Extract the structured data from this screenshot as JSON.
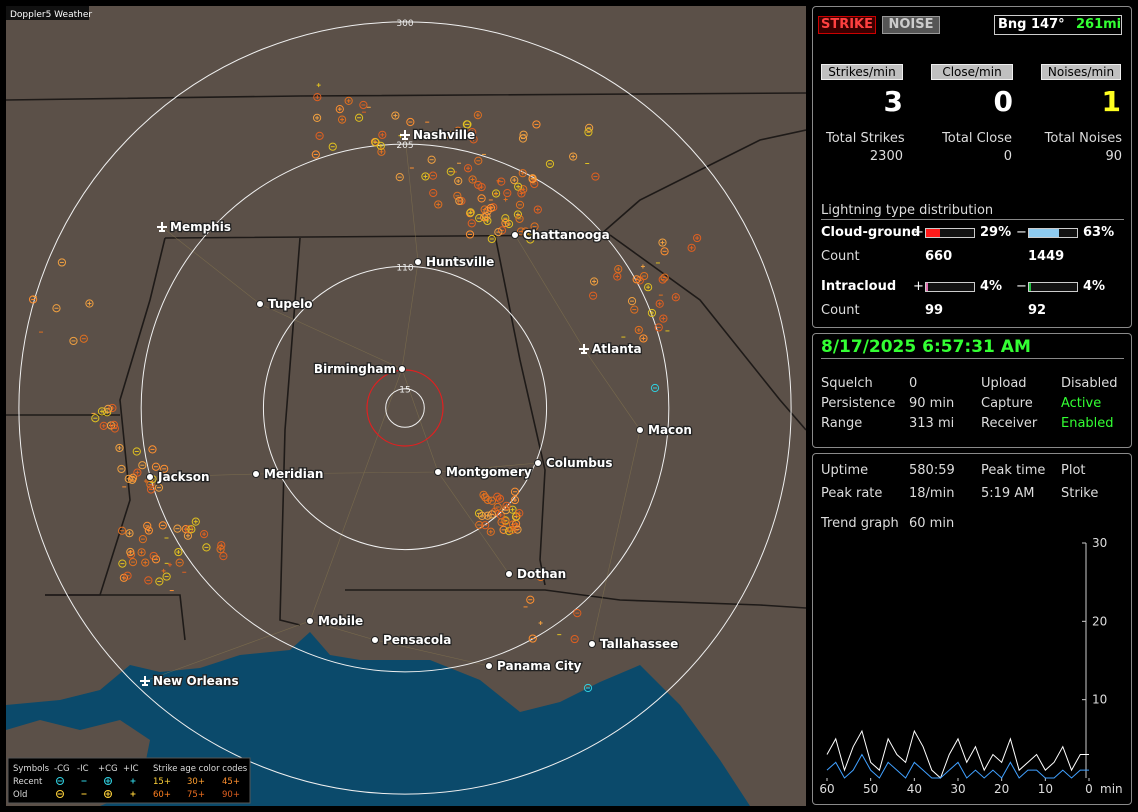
{
  "app_title": "Doppler5 Weather",
  "map": {
    "range_rings": [
      15,
      110,
      205,
      300
    ],
    "cities": [
      {
        "name": "Nashville",
        "icon": "plane"
      },
      {
        "name": "Memphis",
        "icon": "plane"
      },
      {
        "name": "Chattanooga",
        "icon": "dot"
      },
      {
        "name": "Huntsville",
        "icon": "dot"
      },
      {
        "name": "Tupelo",
        "icon": "dot"
      },
      {
        "name": "Atlanta",
        "icon": "plane"
      },
      {
        "name": "Birmingham",
        "icon": "dot"
      },
      {
        "name": "Macon",
        "icon": "dot"
      },
      {
        "name": "Jackson",
        "icon": "dot"
      },
      {
        "name": "Meridian",
        "icon": "dot"
      },
      {
        "name": "Montgomery",
        "icon": "dot"
      },
      {
        "name": "Columbus",
        "icon": "dot"
      },
      {
        "name": "Dothan",
        "icon": "dot"
      },
      {
        "name": "Mobile",
        "icon": "dot"
      },
      {
        "name": "Pensacola",
        "icon": "dot"
      },
      {
        "name": "Tallahassee",
        "icon": "dot"
      },
      {
        "name": "Panama City",
        "icon": "dot"
      },
      {
        "name": "New Orleans",
        "icon": "plane"
      }
    ],
    "legend": {
      "symbols_label": "Symbols",
      "types": [
        "-CG",
        "-IC",
        "+CG",
        "+IC"
      ],
      "age_label": "Strike age color codes",
      "recent_label": "Recent",
      "old_label": "Old",
      "recent_ages": [
        "15+",
        "30+",
        "45+"
      ],
      "old_ages": [
        "60+",
        "75+",
        "90+"
      ]
    }
  },
  "status": {
    "strike_button": "STRIKE",
    "noise_button": "NOISE",
    "bearing": "Bng 147°",
    "distance": "261mi",
    "rate_labels": [
      "Strikes/min",
      "Close/min",
      "Noises/min"
    ],
    "rates": [
      3,
      0,
      1
    ],
    "total_labels": [
      "Total Strikes",
      "Total Close",
      "Total Noises"
    ],
    "totals": [
      2300,
      0,
      90
    ],
    "distribution": {
      "title": "Lightning type distribution",
      "count_label": "Count",
      "rows": [
        {
          "name": "Cloud-ground",
          "positive": {
            "sign": "+",
            "pct": {
              "value": 29,
              "label": "29%"
            },
            "count": 660,
            "color": "#ff1a1a"
          },
          "negative": {
            "sign": "−",
            "pct": {
              "value": 63,
              "label": "63%"
            },
            "count": 1449,
            "color": "#8ecbf0"
          }
        },
        {
          "name": "Intracloud",
          "positive": {
            "sign": "+",
            "pct": {
              "value": 4,
              "label": "4%"
            },
            "count": 99,
            "color": "#e070b0"
          },
          "negative": {
            "sign": "−",
            "pct": {
              "value": 4,
              "label": "4%"
            },
            "count": 92,
            "color": "#20c040"
          }
        }
      ]
    }
  },
  "receiver": {
    "datetime": "8/17/2025 6:57:31 AM",
    "rows": [
      [
        "Squelch",
        0,
        "Upload",
        "Disabled"
      ],
      [
        "Persistence",
        "90 min",
        "Capture",
        "Active"
      ],
      [
        "Range",
        "313 mi",
        "Receiver",
        "Enabled"
      ]
    ]
  },
  "stats": {
    "rows": [
      [
        "Uptime",
        "580:59",
        "Peak time",
        "Plot"
      ],
      [
        "Peak rate",
        "18/min",
        "5:19 AM",
        "Strike"
      ]
    ],
    "trend_label": "Trend graph",
    "trend_window": "60 min",
    "trend_graph": {
      "ylim": [
        0,
        30
      ],
      "yticks": [
        10,
        20,
        30
      ],
      "xlim": [
        60,
        0
      ],
      "xticks": [
        60,
        50,
        40,
        30,
        20,
        10,
        0
      ],
      "x_unit": "min",
      "x": [
        60,
        58,
        56,
        54,
        52,
        50,
        48,
        46,
        44,
        42,
        40,
        38,
        36,
        34,
        32,
        30,
        28,
        26,
        24,
        22,
        20,
        18,
        16,
        14,
        12,
        10,
        8,
        6,
        4,
        2,
        0
      ],
      "series": [
        {
          "color": "#ffffff",
          "values": [
            3,
            5,
            1,
            4,
            6,
            2,
            1,
            5,
            3,
            2,
            6,
            4,
            1,
            0,
            3,
            5,
            2,
            4,
            1,
            3,
            2,
            5,
            1,
            2,
            3,
            1,
            2,
            4,
            1,
            3,
            3
          ]
        },
        {
          "color": "#40a0ff",
          "values": [
            1,
            2,
            0,
            1,
            3,
            1,
            0,
            2,
            1,
            0,
            2,
            1,
            0,
            0,
            1,
            2,
            0,
            1,
            0,
            1,
            0,
            2,
            0,
            1,
            1,
            0,
            0,
            1,
            0,
            1,
            1
          ]
        }
      ]
    }
  }
}
